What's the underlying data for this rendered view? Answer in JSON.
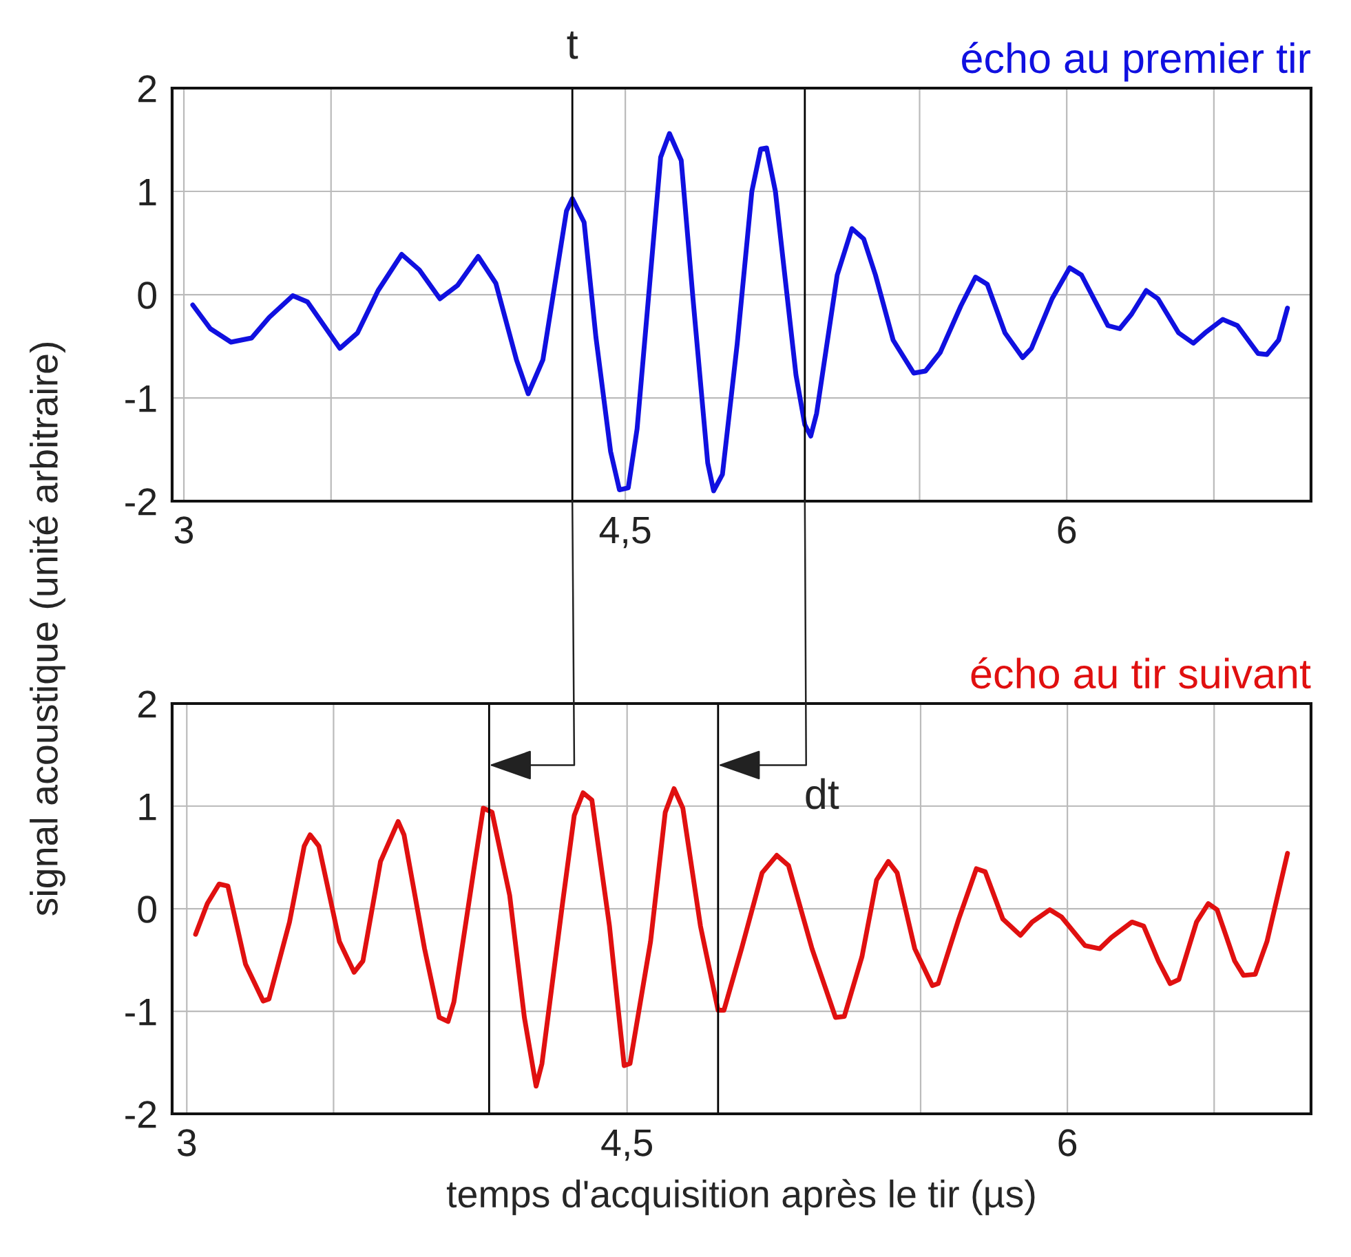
{
  "chart_data": [
    {
      "type": "line",
      "title": "écho au premier tir",
      "ylabel": "signal acoustique (unité arbitraire)",
      "series": [
        {
          "color": "#1010e0",
          "x": [
            3.03,
            3.09,
            3.16,
            3.23,
            3.29,
            3.37,
            3.42,
            3.53,
            3.59,
            3.66,
            3.74,
            3.8,
            3.87,
            3.93,
            4.0,
            4.06,
            4.13,
            4.17,
            4.22,
            4.3,
            4.32,
            4.36,
            4.4,
            4.45,
            4.48,
            4.51,
            4.54,
            4.62,
            4.65,
            4.69,
            4.73,
            4.78,
            4.8,
            4.83,
            4.88,
            4.93,
            4.96,
            4.98,
            5.01,
            5.08,
            5.11,
            5.13,
            5.15,
            5.22,
            5.27,
            5.31,
            5.35,
            5.41,
            5.48,
            5.52,
            5.57,
            5.64,
            5.69,
            5.73,
            5.79,
            5.85,
            5.88,
            5.95,
            6.01,
            6.05,
            6.14,
            6.18,
            6.22,
            6.27,
            6.31,
            6.38,
            6.43,
            6.47,
            6.53,
            6.58,
            6.65,
            6.68,
            6.72,
            6.75
          ],
          "values": [
            -0.1,
            -0.33,
            -0.46,
            -0.42,
            -0.22,
            -0.01,
            -0.07,
            -0.52,
            -0.37,
            0.04,
            0.39,
            0.24,
            -0.04,
            0.09,
            0.37,
            0.11,
            -0.63,
            -0.96,
            -0.63,
            0.81,
            0.93,
            0.7,
            -0.41,
            -1.52,
            -1.89,
            -1.87,
            -1.3,
            1.33,
            1.56,
            1.3,
            -0.04,
            -1.63,
            -1.9,
            -1.74,
            -0.48,
            1.0,
            1.41,
            1.42,
            1.0,
            -0.78,
            -1.26,
            -1.37,
            -1.15,
            0.19,
            0.64,
            0.54,
            0.19,
            -0.44,
            -0.76,
            -0.74,
            -0.56,
            -0.11,
            0.17,
            0.1,
            -0.37,
            -0.61,
            -0.52,
            -0.04,
            0.26,
            0.19,
            -0.3,
            -0.33,
            -0.19,
            0.04,
            -0.04,
            -0.37,
            -0.47,
            -0.37,
            -0.24,
            -0.3,
            -0.57,
            -0.58,
            -0.44,
            -0.13
          ]
        }
      ],
      "xlim": [
        2.96,
        6.83
      ],
      "ylim": [
        -2,
        2
      ],
      "xticks": [
        3,
        {
          "value": 3.5,
          "label": null
        },
        {
          "value": 4.5,
          "label": "4,5"
        },
        {
          "value": 5.5,
          "label": null
        },
        6,
        {
          "value": 6.5,
          "label": null
        }
      ],
      "yticks": [
        -2,
        -1,
        0,
        1,
        2
      ],
      "grid": true,
      "marker": "none",
      "line_style": "solid",
      "ref_lines": [
        {
          "axis": "x",
          "value": 4.32,
          "label": "t",
          "color": "#000000"
        },
        {
          "axis": "x",
          "value": 5.11,
          "label": null,
          "color": "#000000"
        }
      ]
    },
    {
      "type": "line",
      "title": "écho au tir suivant",
      "xlabel": "temps d'acquisition après le tir (µs)",
      "series": [
        {
          "color": "#e01010",
          "x": [
            3.03,
            3.07,
            3.11,
            3.14,
            3.2,
            3.26,
            3.28,
            3.35,
            3.4,
            3.42,
            3.45,
            3.52,
            3.57,
            3.6,
            3.66,
            3.72,
            3.74,
            3.81,
            3.86,
            3.89,
            3.91,
            3.98,
            4.01,
            4.04,
            4.1,
            4.15,
            4.19,
            4.21,
            4.28,
            4.32,
            4.35,
            4.38,
            4.44,
            4.49,
            4.51,
            4.58,
            4.63,
            4.66,
            4.69,
            4.75,
            4.81,
            4.83,
            4.89,
            4.96,
            5.01,
            5.05,
            5.13,
            5.21,
            5.24,
            5.3,
            5.35,
            5.39,
            5.42,
            5.48,
            5.54,
            5.56,
            5.63,
            5.69,
            5.72,
            5.78,
            5.84,
            5.88,
            5.94,
            5.98,
            6.06,
            6.11,
            6.15,
            6.22,
            6.26,
            6.31,
            6.35,
            6.38,
            6.44,
            6.48,
            6.51,
            6.57,
            6.6,
            6.64,
            6.68,
            6.75
          ],
          "values": [
            -0.25,
            0.05,
            0.24,
            0.22,
            -0.54,
            -0.9,
            -0.88,
            -0.13,
            0.61,
            0.72,
            0.61,
            -0.32,
            -0.62,
            -0.51,
            0.46,
            0.85,
            0.72,
            -0.39,
            -1.06,
            -1.1,
            -0.91,
            0.42,
            0.98,
            0.94,
            0.13,
            -1.06,
            -1.73,
            -1.51,
            0.05,
            0.91,
            1.13,
            1.06,
            -0.17,
            -1.53,
            -1.51,
            -0.32,
            0.94,
            1.17,
            0.98,
            -0.17,
            -0.99,
            -0.99,
            -0.39,
            0.35,
            0.52,
            0.42,
            -0.39,
            -1.06,
            -1.05,
            -0.47,
            0.28,
            0.46,
            0.35,
            -0.39,
            -0.75,
            -0.73,
            -0.1,
            0.39,
            0.36,
            -0.1,
            -0.26,
            -0.13,
            -0.01,
            -0.08,
            -0.36,
            -0.39,
            -0.28,
            -0.13,
            -0.17,
            -0.51,
            -0.73,
            -0.69,
            -0.13,
            0.05,
            -0.01,
            -0.51,
            -0.65,
            -0.64,
            -0.32,
            0.54
          ]
        }
      ],
      "xlim": [
        2.95,
        6.83
      ],
      "ylim": [
        -2,
        2
      ],
      "xticks": [
        3,
        {
          "value": 3.5,
          "label": null
        },
        {
          "value": 4.5,
          "label": "4,5"
        },
        {
          "value": 5.5,
          "label": null
        },
        6,
        {
          "value": 6.5,
          "label": null
        }
      ],
      "yticks": [
        -2,
        -1,
        0,
        1,
        2
      ],
      "grid": true,
      "marker": "none",
      "line_style": "solid",
      "ref_lines": [
        {
          "axis": "x",
          "value": 4.03,
          "label": null,
          "color": "#000000"
        },
        {
          "axis": "x",
          "value": 4.81,
          "label": null,
          "color": "#000000"
        }
      ],
      "annotations": [
        "dt"
      ]
    }
  ]
}
